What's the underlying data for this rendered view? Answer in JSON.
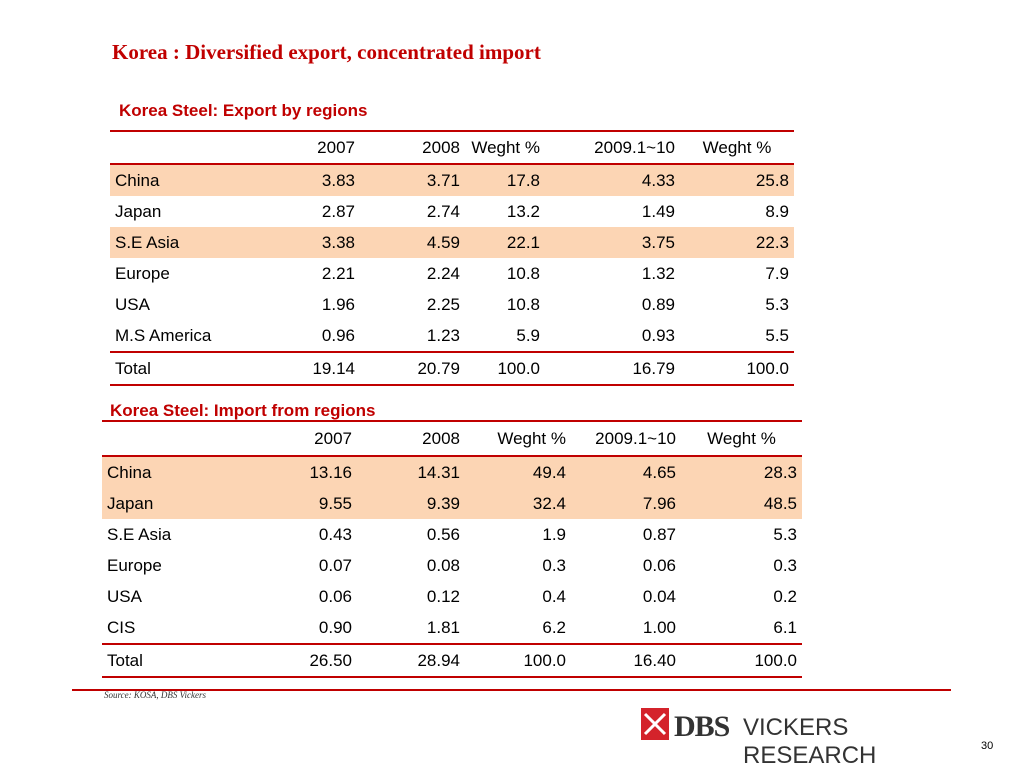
{
  "title": "Korea : Diversified export, concentrated import",
  "export_table": {
    "title": "Korea Steel: Export  by regions",
    "headers": [
      "",
      "2007",
      "2008",
      "Weght %",
      "2009.1~10",
      "Weght %"
    ],
    "rows": [
      [
        "China",
        "3.83",
        "3.71",
        "17.8",
        "4.33",
        "25.8"
      ],
      [
        "Japan",
        "2.87",
        "2.74",
        "13.2",
        "1.49",
        "8.9"
      ],
      [
        "S.E Asia",
        "3.38",
        "4.59",
        "22.1",
        "3.75",
        "22.3"
      ],
      [
        "Europe",
        "2.21",
        "2.24",
        "10.8",
        "1.32",
        "7.9"
      ],
      [
        "USA",
        "1.96",
        "2.25",
        "10.8",
        "0.89",
        "5.3"
      ],
      [
        "M.S America",
        "0.96",
        "1.23",
        "5.9",
        "0.93",
        "5.5"
      ],
      [
        "Total",
        "19.14",
        "20.79",
        "100.0",
        "16.79",
        "100.0"
      ]
    ]
  },
  "import_table": {
    "title": "Korea Steel: Import  from regions",
    "headers": [
      "",
      "2007",
      "2008",
      "Weght %",
      "2009.1~10",
      "Weght %"
    ],
    "rows": [
      [
        "China",
        "13.16",
        "14.31",
        "49.4",
        "4.65",
        "28.3"
      ],
      [
        "Japan",
        "9.55",
        "9.39",
        "32.4",
        "7.96",
        "48.5"
      ],
      [
        "S.E Asia",
        "0.43",
        "0.56",
        "1.9",
        "0.87",
        "5.3"
      ],
      [
        "Europe",
        "0.07",
        "0.08",
        "0.3",
        "0.06",
        "0.3"
      ],
      [
        "USA",
        "0.06",
        "0.12",
        "0.4",
        "0.04",
        "0.2"
      ],
      [
        "CIS",
        "0.90",
        "1.81",
        "6.2",
        "1.00",
        "6.1"
      ],
      [
        "Total",
        "26.50",
        "28.94",
        "100.0",
        "16.40",
        "100.0"
      ]
    ]
  },
  "source": "Source: KOSA, DBS Vickers",
  "logo": {
    "brand": "DBS",
    "text": "VICKERS RESEARCH",
    "mark_color": "#d4232b"
  },
  "page_number": "30",
  "colors": {
    "accent": "#c00000",
    "highlight": "#fcd5b4"
  }
}
